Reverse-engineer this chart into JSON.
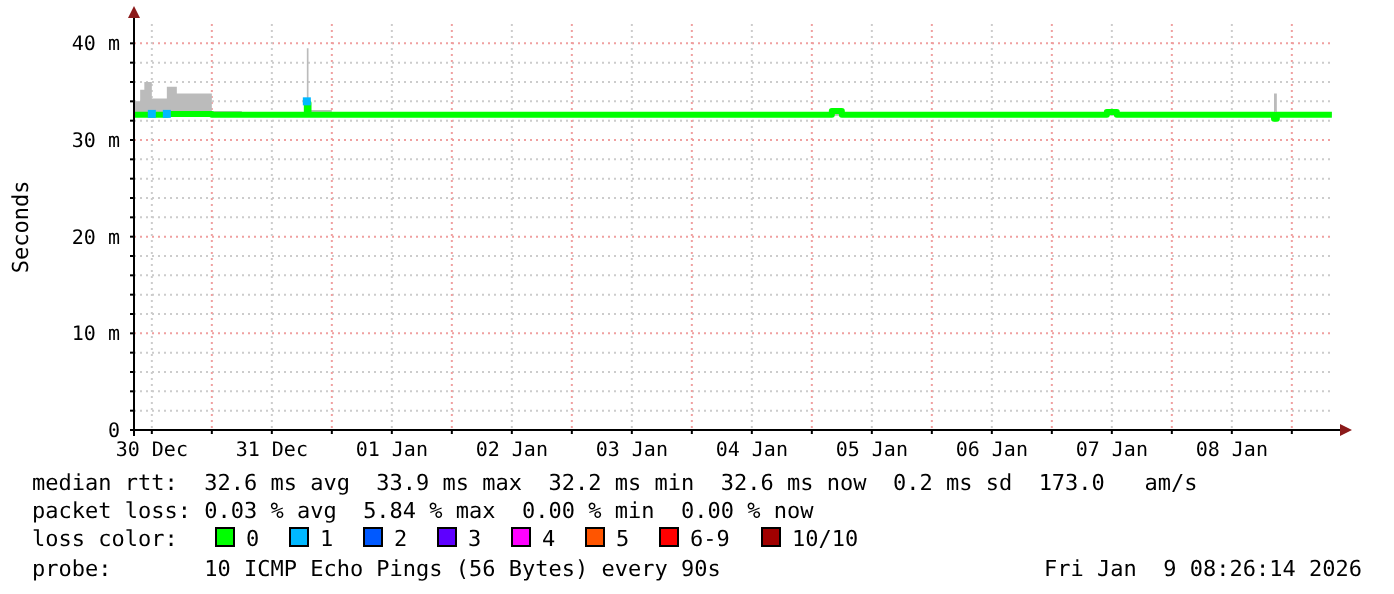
{
  "chart_data": {
    "type": "line",
    "ylabel": "Seconds",
    "legend_title": "loss color:",
    "legend": "bottom",
    "grid": true,
    "xlim": [
      "2025-12-30T08:26",
      "2026-01-09T08:26"
    ],
    "xticks": [
      {
        "value": "2025-12-30T12:00",
        "label": "30 Dec"
      },
      {
        "value": "2025-12-31T00:00",
        "label": null
      },
      {
        "value": "2025-12-31T12:00",
        "label": "31 Dec"
      },
      {
        "value": "2026-01-01T00:00",
        "label": null
      },
      {
        "value": "2026-01-01T12:00",
        "label": "01 Jan"
      },
      {
        "value": "2026-01-02T00:00",
        "label": null
      },
      {
        "value": "2026-01-02T12:00",
        "label": "02 Jan"
      },
      {
        "value": "2026-01-03T00:00",
        "label": null
      },
      {
        "value": "2026-01-03T12:00",
        "label": "03 Jan"
      },
      {
        "value": "2026-01-04T00:00",
        "label": null
      },
      {
        "value": "2026-01-04T12:00",
        "label": "04 Jan"
      },
      {
        "value": "2026-01-05T00:00",
        "label": null
      },
      {
        "value": "2026-01-05T12:00",
        "label": "05 Jan"
      },
      {
        "value": "2026-01-06T00:00",
        "label": null
      },
      {
        "value": "2026-01-06T12:00",
        "label": "06 Jan"
      },
      {
        "value": "2026-01-07T00:00",
        "label": null
      },
      {
        "value": "2026-01-07T12:00",
        "label": "07 Jan"
      },
      {
        "value": "2026-01-08T00:00",
        "label": null
      },
      {
        "value": "2026-01-08T12:00",
        "label": "08 Jan"
      },
      {
        "value": "2026-01-09T00:00",
        "label": null
      }
    ],
    "ylim": [
      0,
      42
    ],
    "yticks": [
      0,
      {
        "value": 2,
        "label": null
      },
      {
        "value": 4,
        "label": null
      },
      {
        "value": 6,
        "label": null
      },
      {
        "value": 8,
        "label": null
      },
      {
        "value": 10,
        "label": "10 m"
      },
      {
        "value": 12,
        "label": null
      },
      {
        "value": 14,
        "label": null
      },
      {
        "value": 16,
        "label": null
      },
      {
        "value": 18,
        "label": null
      },
      {
        "value": 20,
        "label": "20 m"
      },
      {
        "value": 22,
        "label": null
      },
      {
        "value": 24,
        "label": null
      },
      {
        "value": 26,
        "label": null
      },
      {
        "value": 28,
        "label": null
      },
      {
        "value": 30,
        "label": "30 m"
      },
      {
        "value": 32,
        "label": null
      },
      {
        "value": 34,
        "label": null
      },
      {
        "value": 36,
        "label": null
      },
      {
        "value": 38,
        "label": null
      },
      {
        "value": 40,
        "label": "40 m"
      }
    ],
    "x": [
      "2025-12-30T08:30",
      "2025-12-30T09:40",
      "2025-12-30T10:30",
      "2025-12-30T12:00",
      "2025-12-30T15:00",
      "2025-12-30T17:00",
      "2025-12-31T00:00",
      "2025-12-31T06:00",
      "2025-12-31T12:00",
      "2025-12-31T18:40",
      "2025-12-31T19:00",
      "2025-12-31T19:20",
      "2026-01-01T00:00",
      "2026-01-01T12:00",
      "2026-01-02T00:00",
      "2026-01-02T12:00",
      "2026-01-03T00:00",
      "2026-01-03T12:00",
      "2026-01-04T00:00",
      "2026-01-04T12:00",
      "2026-01-05T00:00",
      "2026-01-05T04:00",
      "2026-01-05T06:00",
      "2026-01-06T00:00",
      "2026-01-06T12:00",
      "2026-01-07T00:00",
      "2026-01-07T11:00",
      "2026-01-07T13:00",
      "2026-01-08T06:00",
      "2026-01-08T18:00",
      "2026-01-08T20:26",
      "2026-01-08T21:00",
      "2026-01-09T08:00"
    ],
    "series": [
      {
        "name": "0",
        "color": "#00ff00",
        "values": [
          32.6,
          32.6,
          32.6,
          32.6,
          32.7,
          32.7,
          32.6,
          32.6,
          32.6,
          32.6,
          33.8,
          32.6,
          32.6,
          32.6,
          32.6,
          32.6,
          32.6,
          32.6,
          32.6,
          32.6,
          32.6,
          33,
          32.6,
          32.6,
          32.6,
          32.6,
          32.9,
          32.6,
          32.6,
          32.6,
          32.2,
          32.6,
          32.6
        ],
        "lower": [
          32.5,
          32.5,
          32.5,
          32.5,
          32.5,
          32.5,
          32.5,
          32.5,
          32.4,
          32.5,
          32.6,
          32.5,
          32.4,
          32.4,
          32.4,
          32.4,
          32.4,
          32.4,
          32.4,
          32.4,
          32.4,
          32.5,
          32.4,
          32.4,
          32.4,
          32.4,
          32.5,
          32.4,
          32.4,
          32.4,
          32.1,
          32.4,
          32.4
        ],
        "upper": [
          34,
          35.2,
          36,
          34.3,
          35.5,
          34.8,
          33,
          32.9,
          32.9,
          33,
          39.5,
          33.1,
          32.9,
          32.9,
          32.9,
          32.9,
          32.9,
          32.9,
          32.9,
          32.9,
          32.9,
          33.2,
          32.9,
          32.9,
          32.9,
          32.9,
          33.1,
          32.9,
          32.9,
          32.9,
          34.8,
          32.9,
          32.9
        ]
      },
      {
        "name": "1",
        "color": "#00b8ff",
        "type": "scatter",
        "marker": "square",
        "values": [
          null,
          null,
          null,
          32.7,
          32.7,
          null,
          null,
          null,
          null,
          null,
          34,
          null,
          null,
          null,
          null,
          null,
          null,
          null,
          null,
          null,
          null,
          null,
          null,
          null,
          null,
          null,
          null,
          null,
          null,
          null,
          null,
          null,
          null
        ]
      },
      {
        "name": "2",
        "color": "#0059ff",
        "type": "scatter",
        "marker": "square",
        "values": [
          null,
          null,
          null,
          null,
          null,
          null,
          null,
          null,
          null,
          null,
          null,
          null,
          null,
          null,
          null,
          null,
          null,
          null,
          null,
          null,
          null,
          null,
          null,
          null,
          null,
          null,
          null,
          null,
          null,
          null,
          null,
          null,
          null
        ]
      },
      {
        "name": "3",
        "color": "#5e00ff",
        "type": "scatter",
        "marker": "square",
        "values": [
          null,
          null,
          null,
          null,
          null,
          null,
          null,
          null,
          null,
          null,
          null,
          null,
          null,
          null,
          null,
          null,
          null,
          null,
          null,
          null,
          null,
          null,
          null,
          null,
          null,
          null,
          null,
          null,
          null,
          null,
          null,
          null,
          null
        ]
      },
      {
        "name": "4",
        "color": "#ff00ff",
        "type": "scatter",
        "marker": "square",
        "values": [
          null,
          null,
          null,
          null,
          null,
          null,
          null,
          null,
          null,
          null,
          null,
          null,
          null,
          null,
          null,
          null,
          null,
          null,
          null,
          null,
          null,
          null,
          null,
          null,
          null,
          null,
          null,
          null,
          null,
          null,
          null,
          null,
          null
        ]
      },
      {
        "name": "5",
        "color": "#ff5500",
        "type": "scatter",
        "marker": "square",
        "values": [
          null,
          null,
          null,
          null,
          null,
          null,
          null,
          null,
          null,
          null,
          null,
          null,
          null,
          null,
          null,
          null,
          null,
          null,
          null,
          null,
          null,
          null,
          null,
          null,
          null,
          null,
          null,
          null,
          null,
          null,
          null,
          null,
          null
        ]
      },
      {
        "name": "6-9",
        "color": "#ff0000",
        "type": "scatter",
        "marker": "square",
        "values": [
          null,
          null,
          null,
          null,
          null,
          null,
          null,
          null,
          null,
          null,
          null,
          null,
          null,
          null,
          null,
          null,
          null,
          null,
          null,
          null,
          null,
          null,
          null,
          null,
          null,
          null,
          null,
          null,
          null,
          null,
          null,
          null,
          null
        ]
      },
      {
        "name": "10/10",
        "color": "#a10000",
        "type": "scatter",
        "marker": "square",
        "values": [
          null,
          null,
          null,
          null,
          null,
          null,
          null,
          null,
          null,
          null,
          null,
          null,
          null,
          null,
          null,
          null,
          null,
          null,
          null,
          null,
          null,
          null,
          null,
          null,
          null,
          null,
          null,
          null,
          null,
          null,
          null,
          null,
          null
        ]
      }
    ],
    "annotations": [
      "median rtt:  32.6 ms avg  33.9 ms max  32.2 ms min  32.6 ms now  0.2 ms sd  173.0   am/s",
      "packet loss: 0.03 % avg  5.84 % max  0.00 % min  0.00 % now",
      "probe:       10 ICMP Echo Pings (56 Bytes) every 90s",
      "Fri Jan  9 08:26:14 2026"
    ]
  }
}
